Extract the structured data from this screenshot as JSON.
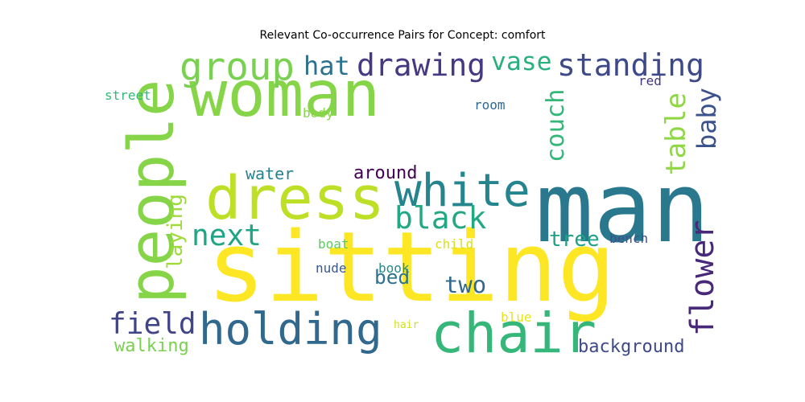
{
  "title": "Relevant Co-occurrence Pairs for Concept: comfort",
  "words": [
    {
      "text": "woman",
      "color": "#86d549"
    },
    {
      "text": "sitting",
      "color": "#fde725"
    },
    {
      "text": "man",
      "color": "#2a788e"
    },
    {
      "text": "people",
      "color": "#86d549"
    },
    {
      "text": "dress",
      "color": "#bddf26"
    },
    {
      "text": "chair",
      "color": "#35b779"
    },
    {
      "text": "holding",
      "color": "#31688e"
    },
    {
      "text": "white",
      "color": "#25858e"
    },
    {
      "text": "group",
      "color": "#7ad151"
    },
    {
      "text": "drawing",
      "color": "#443983"
    },
    {
      "text": "standing",
      "color": "#3e4989"
    },
    {
      "text": "black",
      "color": "#22a884"
    },
    {
      "text": "field",
      "color": "#414487"
    },
    {
      "text": "next",
      "color": "#20a486"
    },
    {
      "text": "flower",
      "color": "#482878"
    },
    {
      "text": "table",
      "color": "#8fd744"
    },
    {
      "text": "couch",
      "color": "#35b779"
    },
    {
      "text": "vase",
      "color": "#2ab07f"
    },
    {
      "text": "hat",
      "color": "#2c728e"
    },
    {
      "text": "baby",
      "color": "#3b528b"
    },
    {
      "text": "two",
      "color": "#31688e"
    },
    {
      "text": "bed",
      "color": "#2c728e"
    },
    {
      "text": "laying",
      "color": "#9fda3a"
    },
    {
      "text": "tree",
      "color": "#1fa187"
    },
    {
      "text": "walking",
      "color": "#7ad151"
    },
    {
      "text": "background",
      "color": "#3e4989"
    },
    {
      "text": "around",
      "color": "#440154"
    },
    {
      "text": "water",
      "color": "#26828e"
    },
    {
      "text": "street",
      "color": "#35b779"
    },
    {
      "text": "body",
      "color": "#86d549"
    },
    {
      "text": "room",
      "color": "#31688e"
    },
    {
      "text": "red",
      "color": "#46337e"
    },
    {
      "text": "boat",
      "color": "#5ec962"
    },
    {
      "text": "child",
      "color": "#d8e219"
    },
    {
      "text": "bench",
      "color": "#3b528b"
    },
    {
      "text": "nude",
      "color": "#38598c"
    },
    {
      "text": "book",
      "color": "#228c8d"
    },
    {
      "text": "hair",
      "color": "#d0e11c"
    },
    {
      "text": "blue",
      "color": "#e5e419"
    }
  ]
}
